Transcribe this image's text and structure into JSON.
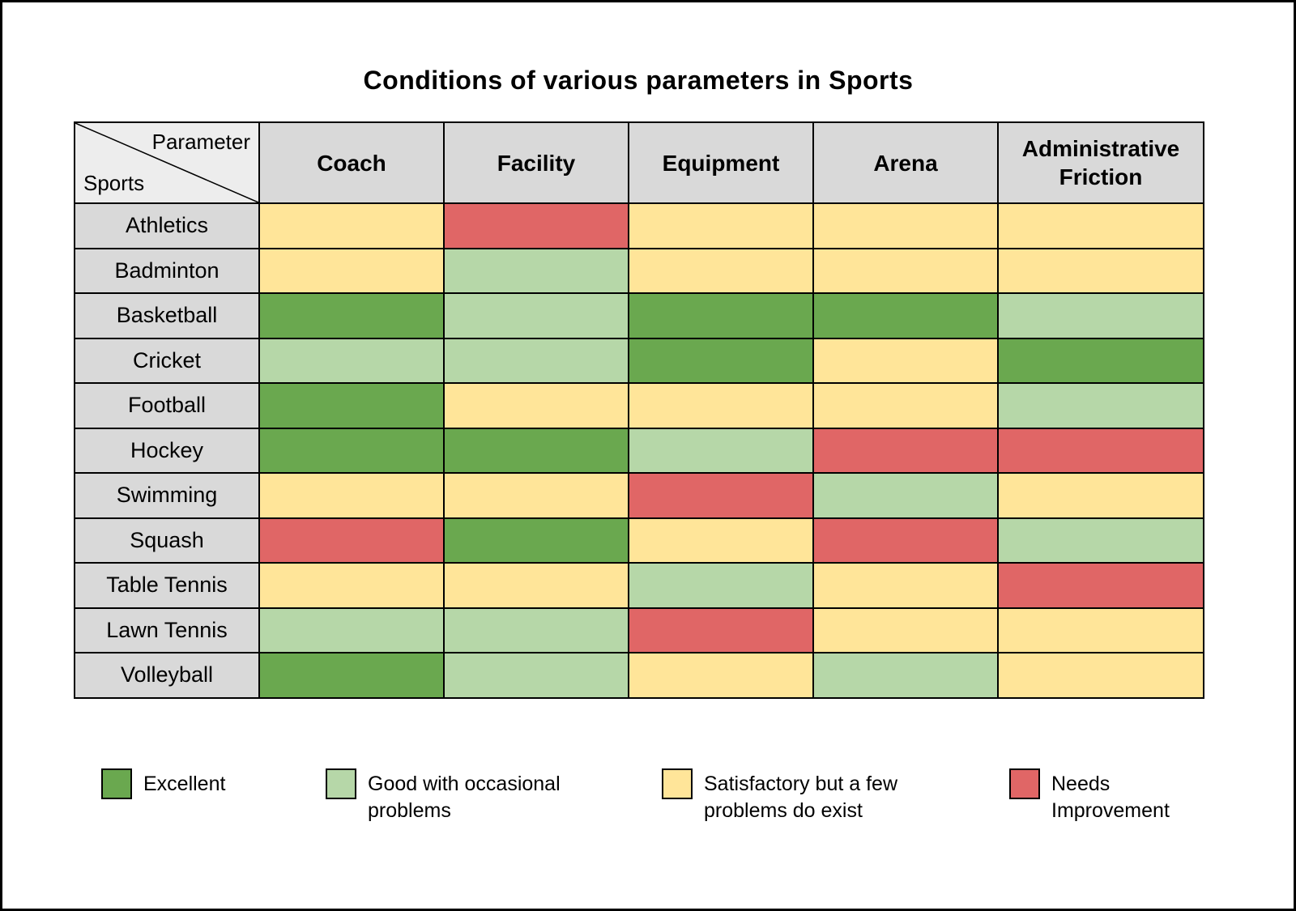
{
  "title": "Conditions of various parameters in Sports",
  "corner": {
    "top": "Parameter",
    "bottom": "Sports"
  },
  "chart_data": {
    "type": "heatmap",
    "title": "Conditions of various parameters in Sports",
    "x_categories": [
      "Coach",
      "Facility",
      "Equipment",
      "Arena",
      "Administrative Friction"
    ],
    "y_categories": [
      "Athletics",
      "Badminton",
      "Basketball",
      "Cricket",
      "Football",
      "Hockey",
      "Swimming",
      "Squash",
      "Table Tennis",
      "Lawn Tennis",
      "Volleyball"
    ],
    "values": [
      [
        "satisfactory",
        "needs-improvement",
        "satisfactory",
        "satisfactory",
        "satisfactory"
      ],
      [
        "satisfactory",
        "good",
        "satisfactory",
        "satisfactory",
        "satisfactory"
      ],
      [
        "excellent",
        "good",
        "excellent",
        "excellent",
        "good"
      ],
      [
        "good",
        "good",
        "excellent",
        "satisfactory",
        "excellent"
      ],
      [
        "excellent",
        "satisfactory",
        "satisfactory",
        "satisfactory",
        "good"
      ],
      [
        "excellent",
        "excellent",
        "good",
        "needs-improvement",
        "needs-improvement"
      ],
      [
        "satisfactory",
        "satisfactory",
        "needs-improvement",
        "good",
        "satisfactory"
      ],
      [
        "needs-improvement",
        "excellent",
        "satisfactory",
        "needs-improvement",
        "good"
      ],
      [
        "satisfactory",
        "satisfactory",
        "good",
        "satisfactory",
        "needs-improvement"
      ],
      [
        "good",
        "good",
        "needs-improvement",
        "satisfactory",
        "satisfactory"
      ],
      [
        "excellent",
        "good",
        "satisfactory",
        "good",
        "satisfactory"
      ]
    ],
    "legend": [
      {
        "key": "excellent",
        "label": "Excellent",
        "color": "#6aa84f"
      },
      {
        "key": "good",
        "label": "Good with occasional problems",
        "color": "#b6d7a8"
      },
      {
        "key": "satisfactory",
        "label": "Satisfactory but a few problems do exist",
        "color": "#ffe599"
      },
      {
        "key": "needs-improvement",
        "label": "Needs Improvement",
        "color": "#e06666"
      }
    ],
    "layout": {
      "legend_position": "bottom",
      "grid": true
    }
  }
}
